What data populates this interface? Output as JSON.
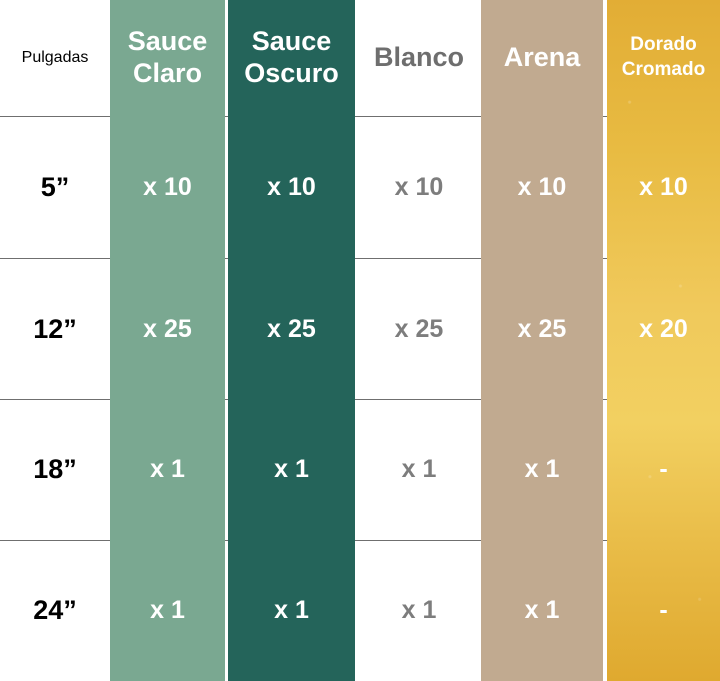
{
  "table": {
    "size_header": "Pulgadas",
    "columns": [
      {
        "name": "Sauce\nClaro",
        "color": "#7aa891",
        "text_color": "#ffffff"
      },
      {
        "name": "Sauce\nOscuro",
        "color": "#24645a",
        "text_color": "#ffffff"
      },
      {
        "name": "Blanco",
        "color": "#ffffff",
        "text_color": "#6e6e6e"
      },
      {
        "name": "Arena",
        "color": "#c1aa90",
        "text_color": "#ffffff"
      },
      {
        "name": "Dorado\nCromado",
        "color": "#e8bb42",
        "text_color": "#ffffff"
      }
    ],
    "rows": [
      {
        "size": "5”",
        "values": [
          "x 10",
          "x 10",
          "x 10",
          "x 10",
          "x 10"
        ]
      },
      {
        "size": "12”",
        "values": [
          "x 25",
          "x 25",
          "x 25",
          "x 25",
          "x 20"
        ]
      },
      {
        "size": "18”",
        "values": [
          "x 1",
          "x 1",
          "x 1",
          "x 1",
          "-"
        ]
      },
      {
        "size": "24”",
        "values": [
          "x 1",
          "x 1",
          "x 1",
          "x 1",
          "-"
        ]
      }
    ]
  }
}
